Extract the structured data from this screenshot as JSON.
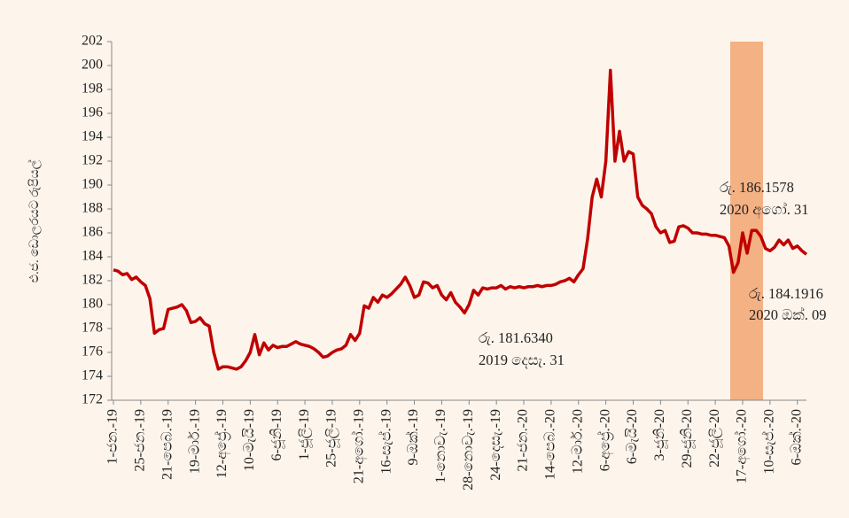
{
  "chart_data": {
    "type": "line",
    "y_label": "එ.ජ. ඩොලරයට රුපියල්",
    "annotations": [
      {
        "lines": [
          "රු. 186.1578",
          "2020 අගෝ. 31"
        ]
      },
      {
        "lines": [
          "රු. 184.1916",
          "2020 ඔක්. 09"
        ]
      },
      {
        "lines": [
          "රු. 181.6340",
          "2019 දෙසැ. 31"
        ]
      }
    ],
    "categories": [
      "1-ජන.-19",
      null,
      null,
      null,
      null,
      null,
      "25-ජන.-19",
      null,
      null,
      null,
      null,
      null,
      "21-පෙබ.-19",
      null,
      null,
      null,
      null,
      null,
      "19-මාර්.-19",
      null,
      null,
      null,
      null,
      null,
      "12-අප්‍රේ.-19",
      null,
      null,
      null,
      null,
      null,
      "10-මැයි-19",
      null,
      null,
      null,
      null,
      null,
      "6-ජූනි-19",
      null,
      null,
      null,
      null,
      null,
      "1-ජූලි-19",
      null,
      null,
      null,
      null,
      null,
      "25-ජූලි-19",
      null,
      null,
      null,
      null,
      null,
      "21-අගෝ.-19",
      null,
      null,
      null,
      null,
      null,
      "16-සැප්.-19",
      null,
      null,
      null,
      null,
      null,
      "9-ඔක්.-19",
      null,
      null,
      null,
      null,
      null,
      "1-නොවැ.-19",
      null,
      null,
      null,
      null,
      null,
      "28-නොවැ.-19",
      null,
      null,
      null,
      null,
      null,
      "24-දෙසැ.-19",
      null,
      null,
      null,
      null,
      null,
      "21-ජන.-20",
      null,
      null,
      null,
      null,
      null,
      "14-පෙබ.-20",
      null,
      null,
      null,
      null,
      null,
      "12-මාර්.-20",
      null,
      null,
      null,
      null,
      null,
      "6-අප්‍රේ.-20",
      null,
      null,
      null,
      null,
      null,
      "6-මැයි-20",
      null,
      null,
      null,
      null,
      null,
      "3-ජූනි-20",
      null,
      null,
      null,
      null,
      null,
      "29-ජූනි-20",
      null,
      null,
      null,
      null,
      null,
      "22-ජූලි-20",
      null,
      null,
      null,
      null,
      null,
      "17-අගෝ.-20",
      null,
      null,
      null,
      null,
      null,
      "10-සැප්.-20",
      null,
      null,
      null,
      null,
      null,
      "6-ඔක්.-20",
      null,
      null
    ],
    "values": [
      182.9,
      182.8,
      182.5,
      182.6,
      182.1,
      182.3,
      181.9,
      181.6,
      180.5,
      177.6,
      177.9,
      178.0,
      179.6,
      179.7,
      179.8,
      180.0,
      179.5,
      178.5,
      178.6,
      178.9,
      178.4,
      178.2,
      176.0,
      174.6,
      174.8,
      174.8,
      174.7,
      174.6,
      174.8,
      175.3,
      176.0,
      177.5,
      175.8,
      176.8,
      176.2,
      176.6,
      176.4,
      176.5,
      176.5,
      176.7,
      176.9,
      176.7,
      176.6,
      176.5,
      176.3,
      176.0,
      175.6,
      175.7,
      176.0,
      176.2,
      176.3,
      176.6,
      177.5,
      177.0,
      177.6,
      179.9,
      179.7,
      180.6,
      180.2,
      180.8,
      180.6,
      180.9,
      181.3,
      181.7,
      182.3,
      181.6,
      180.6,
      180.8,
      181.9,
      181.8,
      181.4,
      181.6,
      180.8,
      180.4,
      181.0,
      180.2,
      179.8,
      179.3,
      180.0,
      181.2,
      180.8,
      181.4,
      181.3,
      181.4,
      181.4,
      181.6,
      181.3,
      181.5,
      181.4,
      181.5,
      181.4,
      181.5,
      181.5,
      181.6,
      181.5,
      181.6,
      181.6,
      181.7,
      181.9,
      182.0,
      182.2,
      181.9,
      182.5,
      183.0,
      185.5,
      189.0,
      190.5,
      189.0,
      192.0,
      199.6,
      192.0,
      194.5,
      192.0,
      192.8,
      192.6,
      189.0,
      188.3,
      188.0,
      187.6,
      186.5,
      186.0,
      186.2,
      185.2,
      185.3,
      186.5,
      186.6,
      186.4,
      186.0,
      186.0,
      185.9,
      185.9,
      185.8,
      185.8,
      185.7,
      185.6,
      184.9,
      182.7,
      183.5,
      186.0,
      184.3,
      186.2,
      186.2,
      185.7,
      184.7,
      184.5,
      184.8,
      185.4,
      185.0,
      185.4,
      184.7,
      184.9,
      184.5,
      184.2
    ],
    "color": "#c00000",
    "ylim": [
      172,
      202
    ],
    "yticks": [
      172,
      174,
      176,
      178,
      180,
      182,
      184,
      186,
      188,
      190,
      192,
      194,
      196,
      198,
      200,
      202
    ],
    "grid": false
  }
}
